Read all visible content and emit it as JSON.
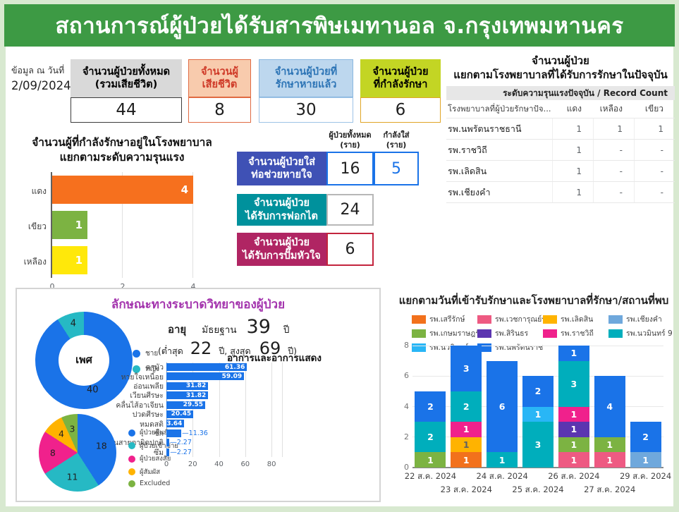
{
  "page": {
    "title": "สถานการณ์ผู้ป่วยได้รับสารพิษเมทานอล จ.กรุงเทพมหานคร"
  },
  "as_of": {
    "label": "ข้อมูล ณ วันที่",
    "date": "2/09/2024"
  },
  "stat_cards": [
    {
      "label_lines": [
        "จำนวนผู้ป่วยทั้งหมด",
        "(รวมเสียชีวิต)"
      ],
      "value": "44",
      "header_bg": "#d9d9d9",
      "header_border": "#d9d9d9",
      "header_text": "#000000",
      "value_border": "#3c3c3c"
    },
    {
      "label_lines": [
        "จำนวนผู้",
        "เสียชีวิต"
      ],
      "value": "8",
      "header_bg": "#f8cbad",
      "header_border": "#e06a42",
      "header_text": "#cf3a28",
      "value_border": "#e06a42"
    },
    {
      "label_lines": [
        "จำนวนผู้ป่วยที่",
        "รักษาหายแล้ว"
      ],
      "value": "30",
      "header_bg": "#bdd7ee",
      "header_border": "#8ab8e0",
      "header_text": "#2e75b6",
      "value_border": "#9dc3e6"
    },
    {
      "label_lines": [
        "จำนวนผู้ป่วย",
        "ที่กำลังรักษา"
      ],
      "value": "6",
      "header_bg": "#c3d524",
      "header_border": "#c3d524",
      "header_text": "#000000",
      "value_border": "#e0a526"
    }
  ],
  "treatment": {
    "col_headers": [
      [
        "ผู้ป่วยทั้งหมด",
        "(ราย)"
      ],
      [
        "กำลังใส่",
        "(ราย)"
      ]
    ],
    "cards": [
      {
        "label_lines": [
          "จำนวนผู้ป่วยใส่",
          "ท่อช่วยหายใจ"
        ],
        "bg": "#3f51b5",
        "total": "16",
        "total_border": "#1a73e8",
        "current": "5",
        "current_border": "#1a73e8",
        "current_color": "#1a73e8"
      },
      {
        "label_lines": [
          "จำนวนผู้ป่วย",
          "ได้รับการฟอกไต"
        ],
        "bg": "#00919c",
        "total": "24",
        "total_border": "#b7b7b7"
      },
      {
        "label_lines": [
          "จำนวนผู้ป่วย",
          "ได้รับการปั๊มหัวใจ"
        ],
        "bg": "#b02563",
        "total": "6",
        "total_border": "#c3243d"
      }
    ]
  },
  "epidemiology": {
    "title": "ลักษณะทางระบาดวิทยาของผู้ป่วย",
    "age": {
      "label": "อายุ",
      "median_label": "มัธยฐาน",
      "median": "39",
      "unit": "ปี",
      "min_label": "(ต่ำสุด",
      "min": "22",
      "mid_label": "ปี, สูงสุด",
      "max": "69",
      "max_label": "ปี)"
    }
  },
  "chart_data": [
    {
      "id": "severity",
      "type": "bar",
      "orientation": "horizontal",
      "title_lines": [
        "จำนวนผู้ที่กำลังรักษาอยู่ในโรงพยาบาล",
        "แยกตามระดับความรุนแรง"
      ],
      "categories": [
        "แดง",
        "เขียว",
        "เหลือง"
      ],
      "values": [
        4,
        1,
        1
      ],
      "colors": [
        "#f6701e",
        "#7cb342",
        "#ffe80a"
      ],
      "xlim": [
        0,
        4
      ],
      "xticks": [
        0,
        2,
        4
      ],
      "grid": true
    },
    {
      "id": "sex",
      "type": "pie",
      "subtype": "donut",
      "center_label": "เพศ",
      "labels": [
        "ชาย",
        "หญิง"
      ],
      "values": [
        40,
        4
      ],
      "colors": [
        "#1a73e8",
        "#26b9c4"
      ],
      "legend_position": "right"
    },
    {
      "id": "symptoms",
      "type": "bar",
      "orientation": "horizontal",
      "title": "อาการและอาการแสดง",
      "categories": [
        "ตามัว",
        "หายใจเหนื่อย",
        "อ่อนเพลีย",
        "เวียนศีรษะ",
        "คลื่นไส้อาเจียน",
        "ปวดศีรษะ",
        "หมดสติ",
        "ชัก",
        "ลานสายตาผิดปกติ",
        "ซึม"
      ],
      "values": [
        61.36,
        59.09,
        31.82,
        31.82,
        29.55,
        20.45,
        13.64,
        11.36,
        2.27,
        2.27
      ],
      "color": "#1a73e8",
      "xticks": [
        0,
        20,
        40,
        60,
        80
      ],
      "xlim": [
        0,
        88
      ],
      "grid": true
    },
    {
      "id": "patient_type",
      "type": "pie",
      "labels": [
        "ผู้ป่วยยืนยัน",
        "ผู้ป่วยเข้าข่าย",
        "ผู้ป่วยสงสัย",
        "ผู้สัมผัส",
        "Excluded"
      ],
      "values": [
        18,
        11,
        8,
        4,
        3
      ],
      "colors": [
        "#1a73e8",
        "#26b9c4",
        "#f0218c",
        "#ffb300",
        "#7cb342"
      ],
      "legend_position": "right"
    },
    {
      "id": "admissions",
      "type": "bar",
      "subtype": "stacked",
      "title": "แยกตามวันที่เข้ารับรักษาและโรงพยาบาลที่รักษา/สถานที่พบ",
      "categories": [
        "22 ส.ค. 2024",
        "23 ส.ค. 2024",
        "24 ส.ค. 2024",
        "25 ส.ค. 2024",
        "26 ส.ค. 2024",
        "27 ส.ค. 2024",
        "29 ส.ค. 2024"
      ],
      "series": [
        {
          "name": "รพ.เสรีรักษ์",
          "color": "#f2711c",
          "values": [
            0,
            1,
            0,
            0,
            0,
            0,
            0
          ]
        },
        {
          "name": "รพ.เวชการุณย์รัศมิ์",
          "color": "#ee5a82",
          "values": [
            0,
            0,
            0,
            0,
            1,
            1,
            0
          ]
        },
        {
          "name": "รพ.เลิดสิน",
          "color": "#ffb300",
          "label_color": "#616161",
          "values": [
            0,
            1,
            0,
            0,
            0,
            0,
            0
          ]
        },
        {
          "name": "รพ.เชียงคำ",
          "color": "#6fa8dc",
          "values": [
            0,
            0,
            0,
            0,
            0,
            0,
            1
          ]
        },
        {
          "name": "รพ.เกษมราษฎร์...",
          "color": "#7cb342",
          "values": [
            1,
            0,
            0,
            0,
            1,
            1,
            0
          ]
        },
        {
          "name": "รพ.สิรินธร",
          "color": "#5b35b0",
          "values": [
            0,
            0,
            0,
            0,
            1,
            0,
            0
          ]
        },
        {
          "name": "รพ.ราชวิถี",
          "color": "#f0218c",
          "values": [
            0,
            1,
            0,
            0,
            1,
            0,
            0
          ]
        },
        {
          "name": "รพ.นวมินทร์ 9",
          "color": "#00aebc",
          "values": [
            2,
            2,
            1,
            3,
            3,
            0,
            0
          ]
        },
        {
          "name": "รพ.นวมินทร์",
          "color": "#29b6f6",
          "values": [
            0,
            0,
            0,
            1,
            0,
            0,
            0
          ]
        },
        {
          "name": "รพ.นพรัตนราชธานี",
          "color": "#1a73e8",
          "values": [
            2,
            3,
            6,
            2,
            1,
            4,
            2
          ]
        }
      ],
      "ylim": [
        0,
        8
      ],
      "yticks": [
        0,
        2,
        4,
        6,
        8
      ],
      "grid": true,
      "legend_position": "top"
    },
    {
      "id": "hospital_table",
      "type": "table",
      "title_lines": [
        "จำนวนผู้ป่วย",
        "แยกตามโรงพยาบาลที่ได้รับการรักษาในปัจจุบัน"
      ],
      "band_header": "ระดับความรุนแรงปัจจุบัน / Record Count",
      "columns": [
        "โรงพยาบาลที่ผู้ป่วยรักษาปัจ...",
        "แดง",
        "เหลือง",
        "เขียว"
      ],
      "rows": [
        [
          "รพ.นพรัตนราชธานี",
          "1",
          "1",
          "1"
        ],
        [
          "รพ.ราชวิถี",
          "1",
          "-",
          "-"
        ],
        [
          "รพ.เลิดสิน",
          "1",
          "-",
          "-"
        ],
        [
          "รพ.เชียงคำ",
          "1",
          "-",
          "-"
        ]
      ]
    }
  ]
}
